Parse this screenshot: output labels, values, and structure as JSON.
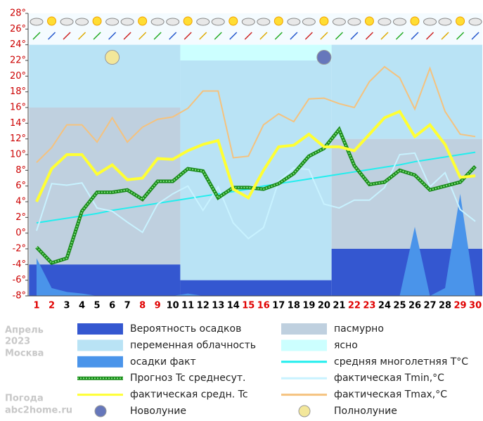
{
  "chart_data": {
    "type": "line",
    "side_labels": {
      "month": "Апрель",
      "year": "2023",
      "city": "Москва",
      "site_title": "Погода",
      "site": "abc2home.ru"
    },
    "categories": [
      "1",
      "2",
      "3",
      "4",
      "5",
      "6",
      "7",
      "8",
      "9",
      "10",
      "11",
      "12",
      "13",
      "14",
      "15",
      "16",
      "17",
      "18",
      "19",
      "20",
      "21",
      "22",
      "23",
      "24",
      "25",
      "26",
      "27",
      "28",
      "29",
      "30"
    ],
    "holidays": [
      true,
      true,
      false,
      false,
      false,
      false,
      false,
      true,
      true,
      false,
      false,
      false,
      false,
      false,
      true,
      true,
      false,
      false,
      false,
      false,
      false,
      true,
      true,
      false,
      false,
      false,
      false,
      false,
      true,
      true
    ],
    "holiday_color": "#e00000",
    "tick_color": "#cc0000",
    "ylim": [
      -8,
      28
    ],
    "yticks": [
      {
        "value": -8,
        "label": "-8°"
      },
      {
        "value": -6,
        "label": "-6°"
      },
      {
        "value": -4,
        "label": "-4°"
      },
      {
        "value": -2,
        "label": "-2°"
      },
      {
        "value": 0,
        "label": "0°"
      },
      {
        "value": 2,
        "label": "2°"
      },
      {
        "value": 4,
        "label": "4°"
      },
      {
        "value": 6,
        "label": "6°"
      },
      {
        "value": 8,
        "label": "8°"
      },
      {
        "value": 10,
        "label": "10°"
      },
      {
        "value": 12,
        "label": "12°"
      },
      {
        "value": 14,
        "label": "14°"
      },
      {
        "value": 16,
        "label": "16°"
      },
      {
        "value": 18,
        "label": "18°"
      },
      {
        "value": 20,
        "label": "20°"
      },
      {
        "value": 22,
        "label": "22°"
      },
      {
        "value": 24,
        "label": "24°"
      },
      {
        "value": 26,
        "label": "26°"
      },
      {
        "value": 28,
        "label": "28°"
      }
    ],
    "legend": [
      {
        "label": "Вероятность осадков",
        "color": "#3457d0",
        "style": "box"
      },
      {
        "label": "пасмурно",
        "color": "#bfd0df",
        "style": "box"
      },
      {
        "label": "переменная облачность",
        "color": "#b9e3f5",
        "style": "box"
      },
      {
        "label": "ясно",
        "color": "#ccffff",
        "style": "box"
      },
      {
        "label": "осадки факт",
        "color": "#4a94ea",
        "style": "box"
      },
      {
        "label": "средняя многолетняя T°C",
        "color": "#22eeee",
        "style": "line"
      },
      {
        "label": "Прогноз Tc среднесут.",
        "color": "#1a8a1a",
        "style": "dotted"
      },
      {
        "label": "фактическая Tmin,°C",
        "color": "#c8f2ff",
        "style": "line"
      },
      {
        "label": "фактическая средн. Tc",
        "color": "#ffff33",
        "style": "line"
      },
      {
        "label": "фактическая Tmax,°C",
        "color": "#f5c27e",
        "style": "line"
      },
      {
        "label": "Новолуние",
        "color": "#6677bb",
        "style": "moon"
      },
      {
        "label": "Полнолуние",
        "color": "#f3e79a",
        "style": "moon"
      }
    ],
    "periods": [
      {
        "first": 1,
        "last": 10,
        "bands": [
          {
            "legend": 2,
            "from": 16,
            "to": 24
          },
          {
            "legend": 1,
            "from": -4,
            "to": 16
          },
          {
            "legend": 0,
            "from": -8,
            "to": -4
          }
        ]
      },
      {
        "first": 11,
        "last": 20,
        "bands": [
          {
            "legend": 3,
            "from": 22,
            "to": 24
          },
          {
            "legend": 2,
            "from": -6,
            "to": 22
          },
          {
            "legend": 0,
            "from": -8,
            "to": -6
          }
        ]
      },
      {
        "first": 21,
        "last": 30,
        "bands": [
          {
            "legend": 2,
            "from": 12,
            "to": 24
          },
          {
            "legend": 1,
            "from": -2,
            "to": 12
          },
          {
            "legend": 0,
            "from": -8,
            "to": -2
          }
        ]
      }
    ],
    "precip": {
      "legend": 4,
      "values": [
        -3.2,
        -7,
        -7.5,
        -7.7,
        -8,
        -8,
        -8,
        -8,
        -8,
        -8,
        -7.7,
        -8,
        -8,
        -8,
        -8,
        -8,
        -8,
        -8,
        -8,
        -8,
        -8,
        -8,
        -8,
        -8,
        -8,
        0.8,
        -8,
        -7,
        5,
        -8
      ]
    },
    "series": [
      {
        "legend": 5,
        "values": [
          1.3,
          1.6,
          1.9,
          2.2,
          2.5,
          2.9,
          3.2,
          3.5,
          3.8,
          4.1,
          4.4,
          4.7,
          5.0,
          5.3,
          5.6,
          6.0,
          6.3,
          6.6,
          6.9,
          7.2,
          7.5,
          7.8,
          8.1,
          8.4,
          8.7,
          9.1,
          9.4,
          9.7,
          10.0,
          10.3
        ]
      },
      {
        "legend": 7,
        "values": [
          0.3,
          6.3,
          6.1,
          6.4,
          3.2,
          2.8,
          1.4,
          0.1,
          3.7,
          5.0,
          6.0,
          2.9,
          5.9,
          1.3,
          -0.7,
          0.7,
          6.6,
          8.3,
          8.1,
          3.7,
          3.2,
          4.2,
          4.2,
          5.8,
          10.0,
          10.2,
          5.9,
          7.7,
          3.0,
          1.5
        ]
      },
      {
        "legend": 9,
        "values": [
          9.0,
          10.9,
          13.8,
          13.8,
          11.6,
          14.7,
          11.6,
          13.5,
          14.5,
          14.8,
          15.9,
          18.1,
          18.1,
          9.6,
          9.8,
          13.8,
          15.2,
          14.2,
          17.1,
          17.2,
          16.5,
          16.0,
          19.3,
          21.2,
          19.8,
          15.8,
          21.0,
          15.5,
          12.6,
          12.3
        ]
      },
      {
        "legend": 6,
        "values": [
          -1.8,
          -3.8,
          -3.2,
          2.8,
          5.2,
          5.2,
          5.5,
          4.3,
          6.6,
          6.6,
          8.2,
          7.9,
          4.5,
          5.8,
          5.8,
          5.6,
          6.3,
          7.6,
          9.8,
          10.8,
          13.2,
          8.6,
          6.2,
          6.5,
          8.0,
          7.4,
          5.5,
          6.0,
          6.5,
          8.5
        ]
      },
      {
        "legend": 8,
        "values": [
          4.0,
          8.2,
          10.0,
          10.0,
          7.5,
          8.7,
          6.8,
          7.0,
          9.5,
          9.4,
          10.5,
          11.3,
          11.8,
          5.6,
          4.5,
          8.0,
          11.0,
          11.2,
          12.6,
          11.0,
          11.0,
          10.5,
          12.6,
          14.7,
          15.5,
          12.3,
          13.8,
          11.3,
          7.1,
          7.3
        ]
      }
    ],
    "moons": [
      {
        "legend": 11,
        "day": 6,
        "y": 22.4
      },
      {
        "legend": 10,
        "day": 20,
        "y": 22.4
      }
    ]
  }
}
